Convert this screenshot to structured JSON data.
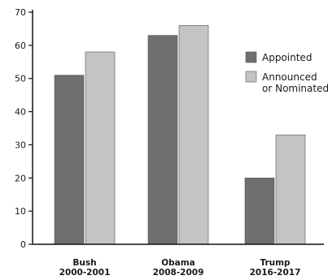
{
  "chart_data": {
    "type": "bar",
    "title": "",
    "xlabel": "",
    "ylabel": "",
    "ylim": [
      0,
      70
    ],
    "yticks": [
      0,
      10,
      20,
      30,
      40,
      50,
      60,
      70
    ],
    "grid": false,
    "legend_position": "right",
    "categories": [
      [
        "Bush",
        "2000-2001"
      ],
      [
        "Obama",
        "2008-2009"
      ],
      [
        "Trump",
        "2016-2017"
      ]
    ],
    "series": [
      {
        "name": "Appointed",
        "values": [
          51,
          63,
          20
        ],
        "color": "#6f6f6f"
      },
      {
        "name": "Announced or Nominated",
        "values": [
          58,
          66,
          33
        ],
        "color": "#c4c4c4"
      }
    ]
  },
  "legend": {
    "appointed": [
      "Appointed"
    ],
    "announced": [
      "Announced",
      "or Nominated"
    ]
  }
}
